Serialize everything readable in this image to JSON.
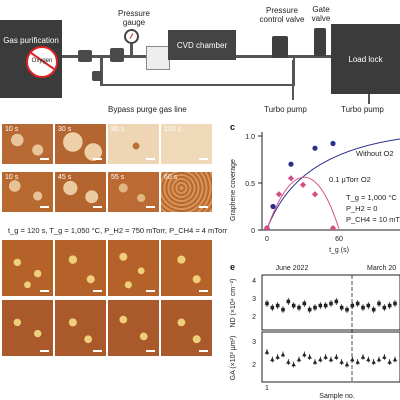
{
  "schematic": {
    "gas_purification": "Gas purification",
    "oxygen": "Oxygen",
    "pressure_gauge": "Pressure\ngauge",
    "cvd_chamber": "CVD chamber",
    "pressure_control_valve": "Pressure\ncontrol valve",
    "gate_valve": "Gate\nvalve",
    "load_lock": "Load lock",
    "bypass_purge": "Bypass purge gas line",
    "turbo_pump_1": "Turbo pump",
    "turbo_pump_2": "Turbo pump"
  },
  "panel_b": {
    "row1": [
      "10 s",
      "30 s",
      "90 s",
      "120 s"
    ],
    "row2": [
      "10 s",
      "45 s",
      "55 s",
      "60 s"
    ]
  },
  "panel_d": {
    "condition": "t_g = 120 s, T_g = 1,050 °C, P_H2 = 750 mTorr, P_CH4 = 4 mTorr"
  },
  "panel_c": {
    "letter": "c",
    "ylabel": "Graphene coverage",
    "xlabel": "t_g (s)",
    "series1_label": "Without O2",
    "series2_label": "0.1 µTorr O2",
    "conditions": [
      "T_g = 1,000 °C",
      "P_H2 = 0",
      "P_CH4 = 10 mT"
    ],
    "ticks_y": [
      "0",
      "0.5",
      "1.0"
    ],
    "ticks_x": [
      "0",
      "60"
    ]
  },
  "panel_e": {
    "letter": "e",
    "date1": "June 2022",
    "date2": "March 20",
    "ylabel_top": "ND (×10⁴ cm⁻²)",
    "ylabel_bottom": "GA (×10³ µm²)",
    "xlabel": "Sample no.",
    "ticks_top": [
      "2",
      "3",
      "4"
    ],
    "ticks_bottom": [
      "2",
      "3"
    ],
    "tick_x": "1"
  },
  "colors": {
    "dark_box": "#3b3b3b",
    "navy": "#2a2f8f",
    "pink": "#d64f86",
    "copper": "#c97b36"
  },
  "chart_data": [
    {
      "type": "scatter",
      "title": "",
      "xlabel": "t_g (s)",
      "ylabel": "Graphene coverage",
      "xlim": [
        0,
        85
      ],
      "ylim": [
        0,
        1.05
      ],
      "series": [
        {
          "name": "Without O2",
          "x": [
            0,
            5,
            20,
            40,
            55
          ],
          "y": [
            0.02,
            0.25,
            0.7,
            0.87,
            0.92
          ]
        },
        {
          "name": "0.1 µTorr O2",
          "x": [
            0,
            10,
            20,
            30,
            40,
            55
          ],
          "y": [
            0.02,
            0.38,
            0.55,
            0.48,
            0.38,
            0.02
          ]
        }
      ]
    },
    {
      "type": "scatter",
      "title": "",
      "xlabel": "Sample no.",
      "ylabel": "ND (×10⁴ cm⁻²)",
      "ylim": [
        1.8,
        4.5
      ],
      "series": [
        {
          "name": "",
          "values": [
            3.1,
            2.9,
            3.0,
            2.8,
            3.2,
            3.0,
            2.9,
            3.1,
            2.8,
            2.9,
            3.0,
            3.0,
            3.1,
            3.2,
            2.9,
            2.8,
            3.0,
            3.1,
            2.9,
            3.0,
            2.8,
            3.1,
            2.9,
            3.0,
            3.1
          ]
        }
      ]
    },
    {
      "type": "scatter",
      "title": "",
      "xlabel": "Sample no.",
      "ylabel": "GA (×10³ µm²)",
      "ylim": [
        1.6,
        3.6
      ],
      "series": [
        {
          "name": "",
          "values": [
            2.8,
            2.5,
            2.6,
            2.7,
            2.4,
            2.3,
            2.5,
            2.7,
            2.6,
            2.4,
            2.5,
            2.6,
            2.5,
            2.6,
            2.4,
            2.3,
            2.5,
            2.4,
            2.6,
            2.5,
            2.4,
            2.5,
            2.6,
            2.4,
            2.5
          ]
        }
      ]
    }
  ]
}
